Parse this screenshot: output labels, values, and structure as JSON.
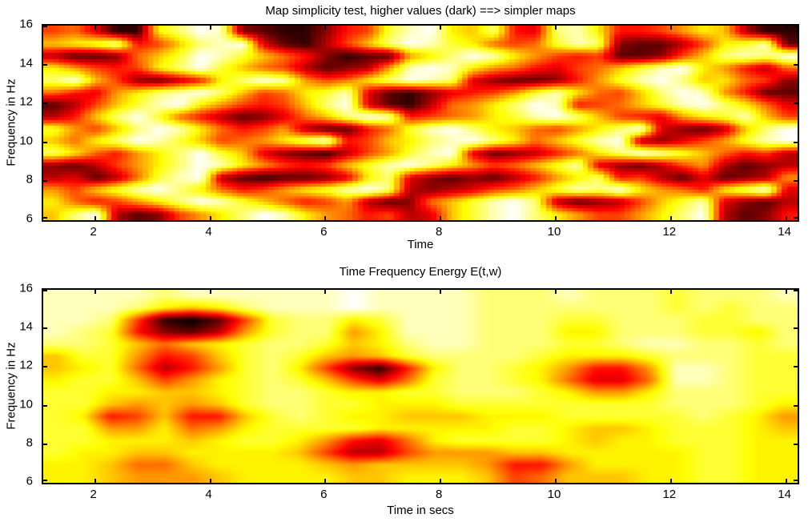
{
  "page": {
    "background": "#ffffff",
    "text_color": "#000000"
  },
  "chart_data": [
    {
      "type": "heatmap",
      "title": "Map simplicity test, higher values (dark) ==> simpler maps",
      "xlabel": "Time",
      "ylabel": "Frequency in Hz",
      "x_range": [
        1.1,
        14.2
      ],
      "y_range": [
        6,
        16
      ],
      "x_ticks": [
        2,
        4,
        6,
        8,
        10,
        12,
        14
      ],
      "y_ticks": [
        6,
        8,
        10,
        12,
        14,
        16
      ],
      "colormap": "hot-reversed",
      "legend": "none",
      "grid": "off",
      "render": "noisy",
      "value_note": "values 0-15, higher = darker = simpler map",
      "grid_cols": 36,
      "grid_rows": 16,
      "grid_hex_rows": [
        "87aee4201cdeec983104529a214998645bee",
        "5431985210adeb8520134787312cddb8431d",
        "bddc753013579cedd6420146898ddc852120",
        "468984203578bdcb61014679a875310469b7",
        "2058cdb9420168742012acddc9631025478c",
        "79a642102587431adeca98631478520169dd",
        "db8531046898520adeb7642019875310247a",
        "b9520379bdca75201987643102589a643158",
        "368520147986bdd97310245786420acdb520",
        "5742013587642098542102475310bca86310",
        "2479642035acdeb86310adcb97420135798b",
        "cdb86420146898531024687531acdb86bdcb",
        "badb7310bdeddca42acdcdb964298bdadcb6",
        "68531024798643102bcba87531204679420a",
        "479864201357986bdc753102bdcb8531acdb",
        "520bdc86420146798ba5310246886420bdc9"
      ]
    },
    {
      "type": "heatmap",
      "title": "Time Frequency Energy E(t,w)",
      "xlabel": "Time in secs",
      "ylabel": "Frequency in Hz",
      "x_range": [
        1.1,
        14.2
      ],
      "y_range": [
        6,
        16
      ],
      "x_ticks": [
        2,
        4,
        6,
        8,
        10,
        12,
        14
      ],
      "y_ticks": [
        6,
        8,
        10,
        12,
        14,
        16
      ],
      "colormap": "hot-reversed",
      "legend": "none",
      "grid": "off",
      "render": "smooth",
      "value_note": "values 0-15, higher = darker = more energy; main peaks near (t=3.5,f=14.2), (t=3.8,f=12), (t=6.7,f=11.9), (t=6.8,f=7.6), (t=11.1,f=11.4), (t=2.4-3.8,f=9.3)",
      "grid_cols": 28,
      "grid_rows": 16,
      "grid_hex_rows": [
        "1111211111101111222122232221",
        "1112454211101111222222232322",
        "1128efd832243111222332223322",
        "1239cdb632264111222442223342",
        "2235754322354211222332112232",
        "5336985323565322223444322233",
        "5437b963248ce942234699611233",
        "433586432358a7322347aa711233",
        "3344554322344332223466422233",
        "3356565322334443333333322234",
        "3498599532344555444333332346",
        "3366476433334444433455433345",
        "334445433469a743333454433344",
        "34455444458bb866655444443344",
        "4457754444565555699644443344",
        "4456665444455444587555443344"
      ]
    }
  ]
}
